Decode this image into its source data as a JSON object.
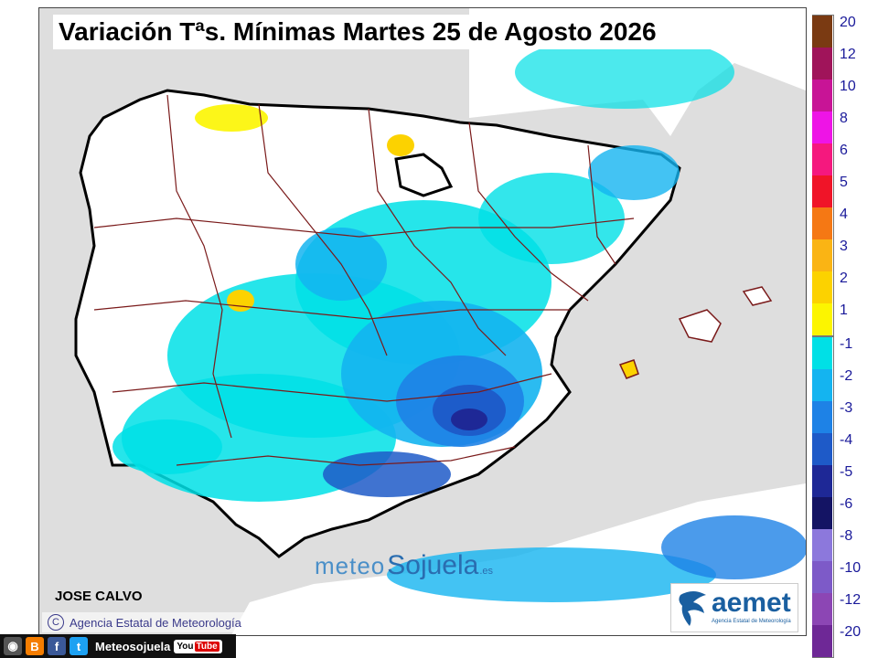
{
  "title": "Variación Tªs. Mínimas Martes 25 de Agosto 2026",
  "legend": {
    "positive": [
      {
        "label": "20",
        "color": "#7a3a12"
      },
      {
        "label": "12",
        "color": "#a0145a"
      },
      {
        "label": "10",
        "color": "#c81496"
      },
      {
        "label": "8",
        "color": "#ee14e6"
      },
      {
        "label": "6",
        "color": "#f5187e"
      },
      {
        "label": "5",
        "color": "#f01428"
      },
      {
        "label": "4",
        "color": "#f57814"
      },
      {
        "label": "3",
        "color": "#fab414"
      },
      {
        "label": "2",
        "color": "#fcd200"
      },
      {
        "label": "1",
        "color": "#fcf500"
      }
    ],
    "negative": [
      {
        "label": "-1",
        "color": "#00e0e6"
      },
      {
        "label": "-2",
        "color": "#14b4f0"
      },
      {
        "label": "-3",
        "color": "#1e82e6"
      },
      {
        "label": "-4",
        "color": "#1e5ac8"
      },
      {
        "label": "-5",
        "color": "#1e2896"
      },
      {
        "label": "-6",
        "color": "#141464"
      },
      {
        "label": "-8",
        "color": "#8c78dc"
      },
      {
        "label": "-10",
        "color": "#7d5ac8"
      },
      {
        "label": "-12",
        "color": "#8c46b4"
      },
      {
        "label": "-20",
        "color": "#6e2896"
      }
    ]
  },
  "author": "JOSE CALVO",
  "credit": "Agencia Estatal de Meteorología",
  "watermark": {
    "part1": "meteo",
    "part2": "Sojuela",
    "tld": ".es"
  },
  "aemet": {
    "name": "aemet",
    "subtitle": "Agencia Estatal de Meteorología"
  },
  "social": {
    "handle": "Meteosojuela",
    "youtube_a": "You",
    "youtube_b": "Tube"
  },
  "colors": {
    "sea": "#dedede",
    "land": "#ffffff",
    "border": "#000000",
    "provinces": "#7a1a1a"
  }
}
